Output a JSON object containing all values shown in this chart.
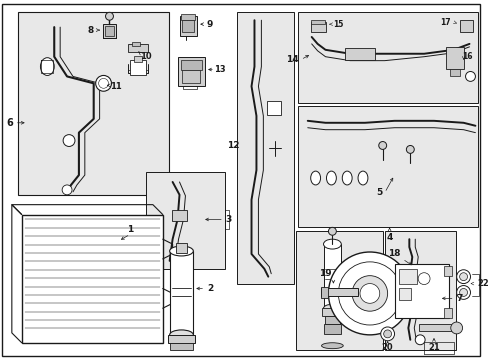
{
  "bg_color": "#ffffff",
  "line_color": "#1a1a1a",
  "box_fill": "#e8e8e8",
  "fig_width": 4.89,
  "fig_height": 3.6,
  "dpi": 100
}
